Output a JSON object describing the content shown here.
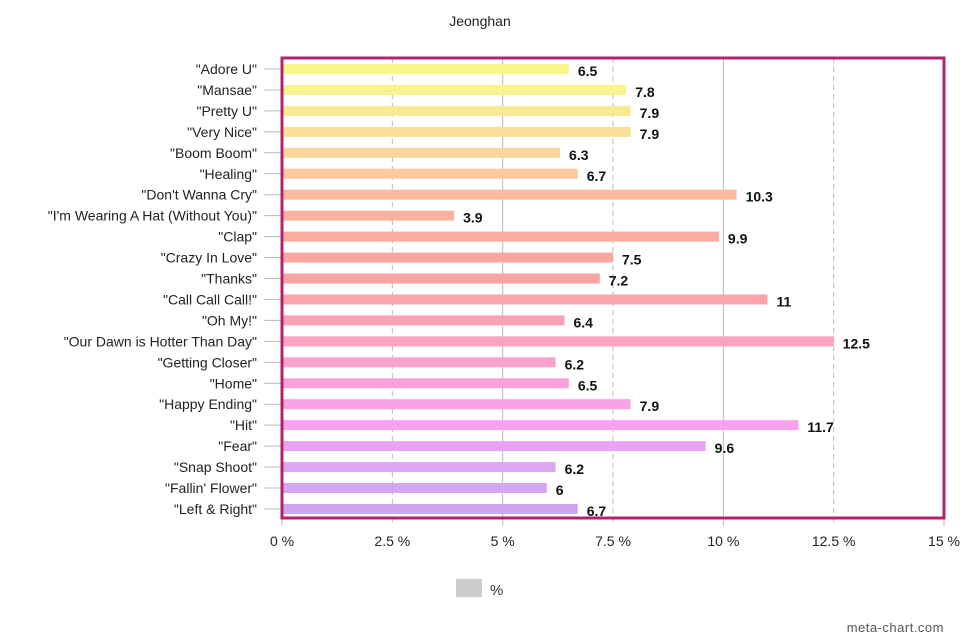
{
  "chart_data": {
    "type": "bar",
    "orientation": "horizontal",
    "title": "Jeonghan",
    "categories": [
      "\"Adore U\"",
      "\"Mansae\"",
      "\"Pretty U\"",
      "\"Very Nice\"",
      "\"Boom Boom\"",
      "\"Healing\"",
      "\"Don't Wanna Cry\"",
      "\"I'm Wearing A Hat (Without You)\"",
      "\"Clap\"",
      "\"Crazy In Love\"",
      "\"Thanks\"",
      "\"Call Call Call!\"",
      "\"Oh My!\"",
      "\"Our Dawn is Hotter Than Day\"",
      "\"Getting Closer\"",
      "\"Home\"",
      "\"Happy Ending\"",
      "\"Hit\"",
      "\"Fear\"",
      "\"Snap Shoot\"",
      "\"Fallin' Flower\"",
      "\"Left & Right\""
    ],
    "series": [
      {
        "name": "%",
        "values": [
          6.5,
          7.8,
          7.9,
          7.9,
          6.3,
          6.7,
          10.3,
          3.9,
          9.9,
          7.5,
          7.2,
          11,
          6.4,
          12.5,
          6.2,
          6.5,
          7.9,
          11.7,
          9.6,
          6.2,
          6,
          6.7
        ],
        "value_labels": [
          "6.5",
          "7.8",
          "7.9",
          "7.9",
          "6.3",
          "6.7",
          "10.3",
          "3.9",
          "9.9",
          "7.5",
          "7.2",
          "11",
          "6.4",
          "12.5",
          "6.2",
          "6.5",
          "7.9",
          "11.7",
          "9.6",
          "6.2",
          "6",
          "6.7"
        ]
      }
    ],
    "bar_colors": [
      "#f8f88a",
      "#f8f48c",
      "#f8ea90",
      "#fadf98",
      "#fcd59c",
      "#fdcaa0",
      "#fcbb9e",
      "#fbb39e",
      "#fbac9e",
      "#fba79f",
      "#fba3a1",
      "#fba4ab",
      "#fba3b6",
      "#fba3c2",
      "#fba2cd",
      "#f9a1da",
      "#f7a2e5",
      "#f5a3ef",
      "#e8a4f3",
      "#dea6f2",
      "#d5a6f2",
      "#cda5f0"
    ],
    "xlim": [
      0,
      15
    ],
    "xticks": [
      0,
      2.5,
      5,
      7.5,
      10,
      12.5,
      15
    ],
    "xtick_labels": [
      "0 %",
      "2.5 %",
      "5 %",
      "7.5 %",
      "10 %",
      "12.5 %",
      "15 %"
    ],
    "xlabel": "",
    "ylabel": "",
    "grid": true,
    "legend": {
      "label": "%",
      "color": "#cccccc",
      "placement": "bottom-center"
    },
    "frame_color": "#b0246e",
    "credit": "meta-chart.com"
  }
}
